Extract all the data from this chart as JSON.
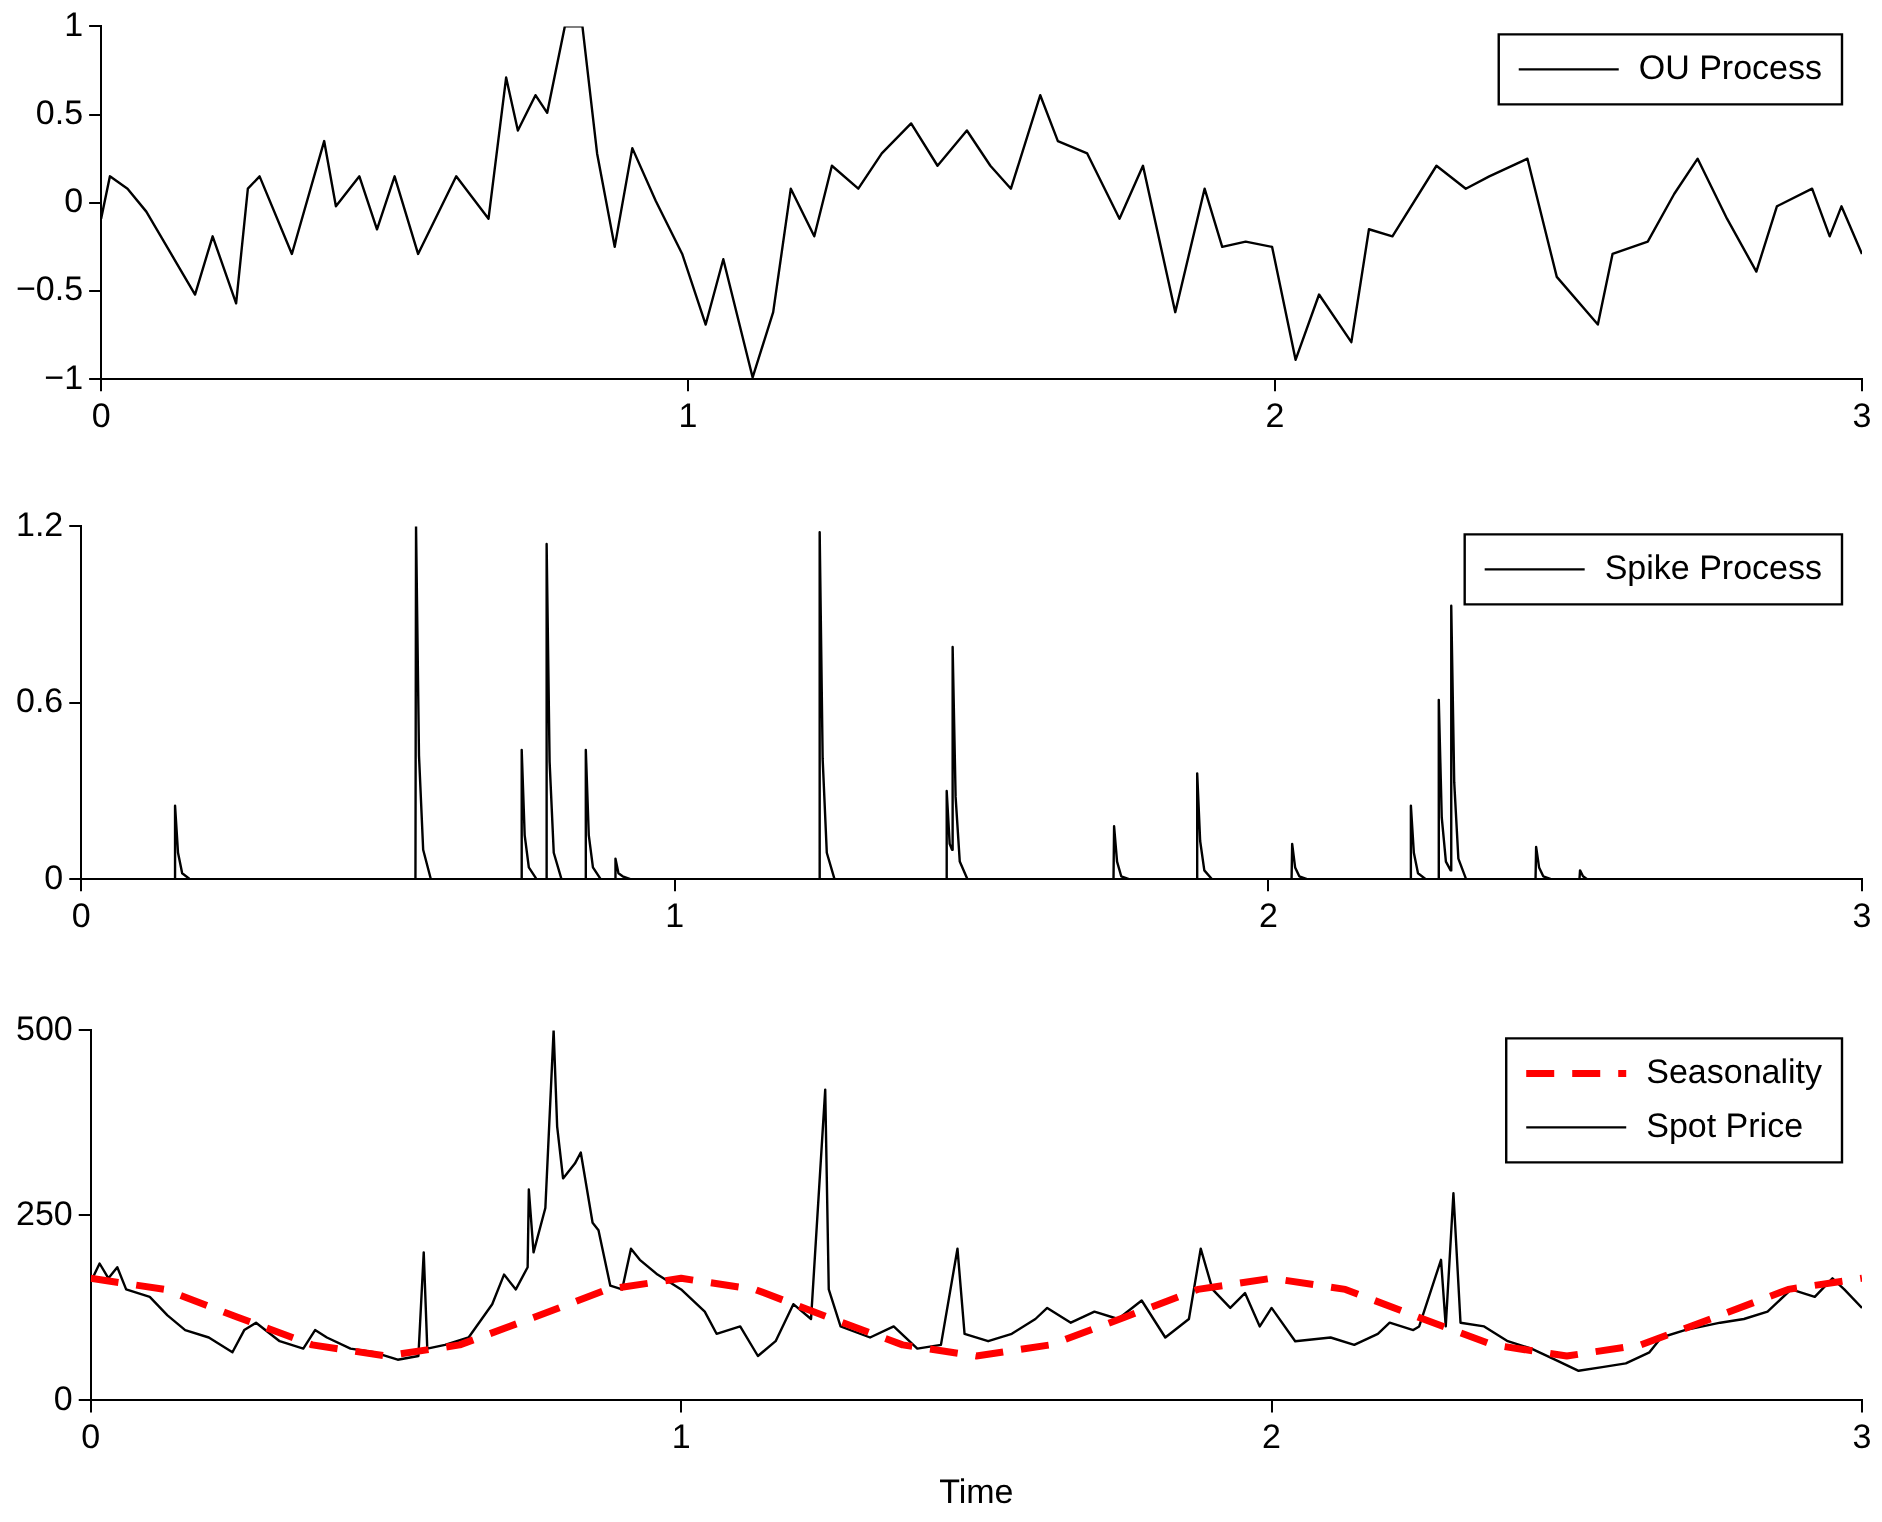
{
  "chart_data": [
    {
      "type": "line",
      "legend": "top right",
      "grid": false,
      "marker": "none",
      "xlim": [
        0,
        3
      ],
      "xticks": [
        0,
        1,
        2,
        3
      ],
      "ylim": [
        -1,
        1
      ],
      "yticks": [
        {
          "value": -1,
          "label": "−1"
        },
        {
          "value": -0.5,
          "label": "−0.5"
        },
        0,
        0.5,
        1
      ],
      "x": [
        0,
        0.015,
        0.045,
        0.077,
        0.13,
        0.16,
        0.19,
        0.23,
        0.25,
        0.27,
        0.325,
        0.38,
        0.4,
        0.44,
        0.47,
        0.5,
        0.54,
        0.605,
        0.66,
        0.69,
        0.71,
        0.74,
        0.76,
        0.79,
        0.82,
        0.845,
        0.875,
        0.905,
        0.945,
        0.99,
        1.03,
        1.06,
        1.11,
        1.145,
        1.175,
        1.215,
        1.245,
        1.29,
        1.33,
        1.38,
        1.425,
        1.475,
        1.515,
        1.55,
        1.6,
        1.63,
        1.68,
        1.735,
        1.775,
        1.83,
        1.88,
        1.91,
        1.95,
        1.995,
        2.035,
        2.075,
        2.13,
        2.16,
        2.2,
        2.275,
        2.325,
        2.365,
        2.43,
        2.48,
        2.55,
        2.575,
        2.635,
        2.68,
        2.72,
        2.77,
        2.82,
        2.855,
        2.915,
        2.945,
        2.965,
        3
      ],
      "series": [
        {
          "name": "OU Process",
          "color": "#000000",
          "line_style": "solid",
          "values": [
            -0.09,
            0.15,
            0.08,
            -0.05,
            -0.35,
            -0.52,
            -0.19,
            -0.57,
            0.08,
            0.15,
            -0.29,
            0.35,
            -0.02,
            0.15,
            -0.15,
            0.15,
            -0.29,
            0.15,
            -0.09,
            0.71,
            0.41,
            0.61,
            0.51,
            1,
            1,
            0.28,
            -0.25,
            0.31,
            0.01,
            -0.29,
            -0.69,
            -0.32,
            -0.99,
            -0.62,
            0.08,
            -0.19,
            0.21,
            0.08,
            0.28,
            0.45,
            0.21,
            0.41,
            0.21,
            0.08,
            0.61,
            0.35,
            0.28,
            -0.09,
            0.21,
            -0.62,
            0.08,
            -0.25,
            -0.22,
            -0.25,
            -0.89,
            -0.52,
            -0.79,
            -0.15,
            -0.19,
            0.21,
            0.08,
            0.15,
            0.25,
            -0.42,
            -0.69,
            -0.29,
            -0.22,
            0.05,
            0.25,
            -0.09,
            -0.39,
            -0.02,
            0.08,
            -0.19,
            -0.02,
            -0.29
          ]
        }
      ]
    },
    {
      "type": "line",
      "legend": "top right",
      "grid": false,
      "marker": "none",
      "xlim": [
        0,
        3
      ],
      "xticks": [
        0,
        1,
        2,
        3
      ],
      "ylim": [
        0,
        1.2
      ],
      "yticks": [
        0,
        0.6,
        1.2
      ],
      "x": [
        0,
        0.157,
        0.158,
        0.163,
        0.17,
        0.183,
        0.563,
        0.564,
        0.569,
        0.576,
        0.589,
        0.741,
        0.742,
        0.747,
        0.754,
        0.767,
        0.783,
        0.784,
        0.789,
        0.796,
        0.809,
        0.849,
        0.85,
        0.855,
        0.862,
        0.875,
        0.899,
        0.9,
        0.905,
        0.912,
        0.925,
        1.243,
        1.244,
        1.249,
        1.256,
        1.269,
        1.457,
        1.458,
        1.463,
        1.467,
        1.468,
        1.473,
        1.48,
        1.493,
        1.739,
        1.74,
        1.745,
        1.752,
        1.765,
        1.879,
        1.88,
        1.885,
        1.892,
        1.905,
        2.039,
        2.04,
        2.045,
        2.052,
        2.065,
        2.239,
        2.24,
        2.245,
        2.252,
        2.265,
        2.286,
        2.287,
        2.292,
        2.299,
        2.307,
        2.308,
        2.313,
        2.32,
        2.333,
        2.45,
        2.451,
        2.456,
        2.463,
        2.476,
        2.524,
        2.525,
        2.53,
        2.537,
        2.55,
        3
      ],
      "series": [
        {
          "name": "Spike Process",
          "color": "#000000",
          "line_style": "solid",
          "values": [
            0,
            0,
            0.25,
            0.09,
            0.02,
            0,
            0,
            1.2,
            0.42,
            0.1,
            0,
            0,
            0.44,
            0.15,
            0.04,
            0,
            0,
            1.14,
            0.4,
            0.09,
            0,
            0,
            0.44,
            0.15,
            0.04,
            0,
            0,
            0.07,
            0.02,
            0.01,
            0,
            0,
            1.18,
            0.41,
            0.09,
            0,
            0,
            0.3,
            0.12,
            0.1,
            0.79,
            0.28,
            0.06,
            0,
            0,
            0.18,
            0.06,
            0.01,
            0,
            0,
            0.36,
            0.13,
            0.03,
            0,
            0,
            0.12,
            0.04,
            0.01,
            0,
            0,
            0.25,
            0.09,
            0.02,
            0,
            0,
            0.61,
            0.21,
            0.06,
            0.03,
            0.93,
            0.33,
            0.07,
            0,
            0,
            0.11,
            0.04,
            0.01,
            0,
            0,
            0.03,
            0.01,
            0,
            0,
            0
          ]
        }
      ]
    },
    {
      "type": "line",
      "legend": "top right",
      "grid": false,
      "marker": "none",
      "xlabel": "Time",
      "xlim": [
        0,
        3
      ],
      "xticks": [
        0,
        1,
        2,
        3
      ],
      "ylim": [
        0,
        500
      ],
      "yticks": [
        0,
        250,
        500
      ],
      "series": [
        {
          "name": "Seasonality",
          "color": "#ff0000",
          "line_style": "dashed",
          "x": [
            0,
            0.125,
            0.25,
            0.375,
            0.5,
            0.625,
            0.75,
            0.875,
            1,
            1.125,
            1.25,
            1.375,
            1.5,
            1.625,
            1.75,
            1.875,
            2,
            2.125,
            2.25,
            2.375,
            2.5,
            2.625,
            2.75,
            2.875,
            3
          ],
          "values": [
            165,
            150,
            112,
            75,
            60,
            75,
            112,
            150,
            165,
            150,
            112,
            75,
            60,
            75,
            112,
            150,
            165,
            150,
            112,
            75,
            60,
            75,
            112,
            150,
            165
          ]
        },
        {
          "name": "Spot Price",
          "color": "#000000",
          "line_style": "solid",
          "x": [
            0,
            0.015,
            0.03,
            0.045,
            0.06,
            0.1,
            0.13,
            0.16,
            0.2,
            0.24,
            0.26,
            0.28,
            0.32,
            0.36,
            0.38,
            0.4,
            0.44,
            0.48,
            0.52,
            0.555,
            0.564,
            0.57,
            0.6,
            0.64,
            0.68,
            0.7,
            0.72,
            0.74,
            0.742,
            0.75,
            0.77,
            0.784,
            0.79,
            0.8,
            0.82,
            0.83,
            0.85,
            0.86,
            0.88,
            0.9,
            0.915,
            0.93,
            0.96,
            1,
            1.04,
            1.06,
            1.1,
            1.13,
            1.16,
            1.19,
            1.22,
            1.244,
            1.25,
            1.27,
            1.32,
            1.36,
            1.4,
            1.44,
            1.468,
            1.48,
            1.52,
            1.56,
            1.6,
            1.62,
            1.66,
            1.7,
            1.74,
            1.78,
            1.82,
            1.86,
            1.88,
            1.9,
            1.93,
            1.955,
            1.98,
            2,
            2.04,
            2.1,
            2.14,
            2.18,
            2.2,
            2.24,
            2.25,
            2.287,
            2.295,
            2.308,
            2.32,
            2.36,
            2.4,
            2.44,
            2.48,
            2.52,
            2.56,
            2.6,
            2.64,
            2.66,
            2.7,
            2.76,
            2.8,
            2.84,
            2.88,
            2.92,
            2.95,
            2.97,
            3
          ],
          "values": [
            160,
            185,
            165,
            180,
            150,
            140,
            115,
            95,
            85,
            65,
            95,
            105,
            80,
            70,
            95,
            85,
            70,
            65,
            55,
            60,
            200,
            70,
            75,
            85,
            130,
            170,
            150,
            180,
            285,
            200,
            260,
            500,
            370,
            300,
            320,
            335,
            240,
            230,
            155,
            150,
            205,
            190,
            170,
            150,
            120,
            90,
            100,
            60,
            80,
            130,
            110,
            420,
            150,
            100,
            85,
            100,
            70,
            75,
            205,
            90,
            80,
            90,
            110,
            125,
            105,
            120,
            110,
            135,
            85,
            110,
            205,
            150,
            125,
            145,
            100,
            125,
            80,
            85,
            75,
            90,
            105,
            95,
            100,
            190,
            100,
            280,
            105,
            100,
            80,
            70,
            55,
            40,
            45,
            50,
            65,
            85,
            95,
            105,
            110,
            120,
            150,
            140,
            165,
            150,
            125
          ]
        }
      ]
    }
  ]
}
